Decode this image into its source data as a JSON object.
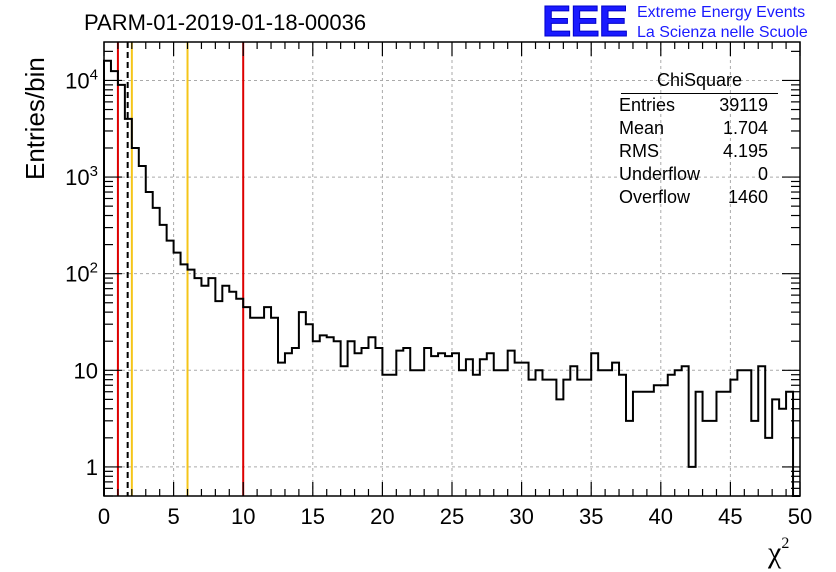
{
  "title": "PARM-01-2019-01-18-00036",
  "logo": {
    "text": "EEE",
    "line1": "Extreme Energy Events",
    "line2": "La Scienza nelle Scuole",
    "color": "#1a1aff"
  },
  "stats": {
    "title": "ChiSquare",
    "rows": [
      {
        "label": "Entries",
        "value": "39119"
      },
      {
        "label": "Mean",
        "value": "1.704"
      },
      {
        "label": "RMS",
        "value": "4.195"
      },
      {
        "label": "Underflow",
        "value": "0"
      },
      {
        "label": "Overflow",
        "value": "1460"
      }
    ]
  },
  "chart_data": {
    "type": "bar",
    "histogram": true,
    "ylabel": "Entries/bin",
    "xlabel": "χ",
    "xlabel_sup": "2",
    "xlim": [
      0,
      50
    ],
    "ylim": [
      0.5,
      25000
    ],
    "yscale": "log",
    "grid": true,
    "bin_width": 0.5,
    "x_ticks": [
      {
        "v": 0,
        "label": "0"
      },
      {
        "v": 5,
        "label": "5"
      },
      {
        "v": 10,
        "label": "10"
      },
      {
        "v": 15,
        "label": "15"
      },
      {
        "v": 20,
        "label": "20"
      },
      {
        "v": 25,
        "label": "25"
      },
      {
        "v": 30,
        "label": "30"
      },
      {
        "v": 35,
        "label": "35"
      },
      {
        "v": 40,
        "label": "40"
      },
      {
        "v": 45,
        "label": "45"
      },
      {
        "v": 50,
        "label": "50"
      }
    ],
    "y_ticks": [
      {
        "v": 1,
        "label": "1"
      },
      {
        "v": 10,
        "label": "10"
      },
      {
        "v": 100,
        "label": "10",
        "exp": "2"
      },
      {
        "v": 1000,
        "label": "10",
        "exp": "3"
      },
      {
        "v": 10000,
        "label": "10",
        "exp": "4"
      }
    ],
    "values": [
      16000,
      12500,
      9000,
      4000,
      2000,
      1300,
      700,
      480,
      320,
      220,
      165,
      125,
      110,
      90,
      75,
      90,
      52,
      75,
      65,
      55,
      45,
      35,
      35,
      45,
      35,
      12,
      15,
      17,
      40,
      30,
      20,
      23,
      22,
      20,
      11,
      20,
      15,
      17,
      22,
      17,
      9,
      9,
      16,
      17,
      10,
      10,
      17,
      14,
      15,
      14,
      15,
      10,
      13,
      9,
      13,
      15,
      10,
      10,
      16,
      12,
      12,
      8,
      10,
      8,
      8,
      5,
      8,
      11,
      8,
      8,
      15,
      10,
      10,
      12,
      9,
      3,
      6,
      6,
      6,
      7,
      7,
      9,
      10,
      11,
      1,
      6,
      3,
      3,
      6,
      6,
      8,
      10,
      10,
      3,
      11,
      2,
      5,
      4,
      6,
      0
    ],
    "vlines": [
      {
        "x": 1,
        "color": "#dd0000",
        "style": "solid"
      },
      {
        "x": 1.7,
        "color": "#000000",
        "style": "dashed"
      },
      {
        "x": 2,
        "color": "#f5c518",
        "style": "solid"
      },
      {
        "x": 6,
        "color": "#f5c518",
        "style": "solid"
      },
      {
        "x": 10,
        "color": "#dd0000",
        "style": "solid"
      }
    ]
  }
}
